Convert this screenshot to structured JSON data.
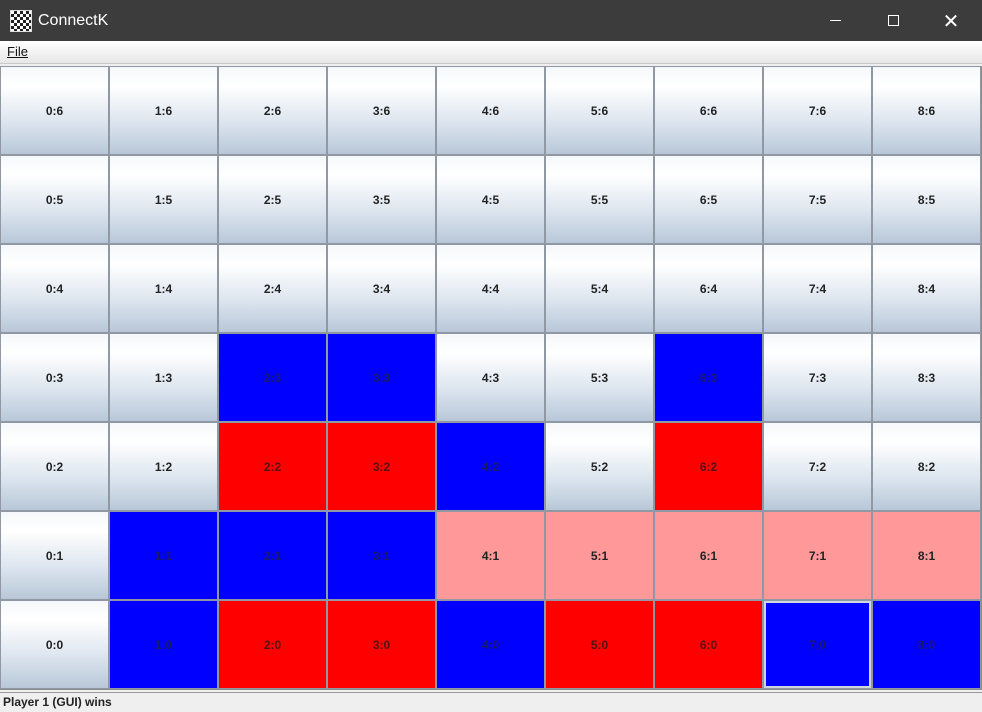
{
  "window": {
    "title": "ConnectK",
    "minimize_glyph": "",
    "maximize_glyph": "",
    "close_glyph": "✕"
  },
  "menubar": {
    "file_label": "File"
  },
  "colors": {
    "blue_piece": "#0000ff",
    "red_piece": "#ff0000",
    "highlight": "#ff9999"
  },
  "board": {
    "columns": 9,
    "rows": 7,
    "cells": [
      {
        "label": "0:6",
        "state": "empty"
      },
      {
        "label": "1:6",
        "state": "empty"
      },
      {
        "label": "2:6",
        "state": "empty"
      },
      {
        "label": "3:6",
        "state": "empty"
      },
      {
        "label": "4:6",
        "state": "empty"
      },
      {
        "label": "5:6",
        "state": "empty"
      },
      {
        "label": "6:6",
        "state": "empty"
      },
      {
        "label": "7:6",
        "state": "empty"
      },
      {
        "label": "8:6",
        "state": "empty"
      },
      {
        "label": "0:5",
        "state": "empty"
      },
      {
        "label": "1:5",
        "state": "empty"
      },
      {
        "label": "2:5",
        "state": "empty"
      },
      {
        "label": "3:5",
        "state": "empty"
      },
      {
        "label": "4:5",
        "state": "empty"
      },
      {
        "label": "5:5",
        "state": "empty"
      },
      {
        "label": "6:5",
        "state": "empty"
      },
      {
        "label": "7:5",
        "state": "empty"
      },
      {
        "label": "8:5",
        "state": "empty"
      },
      {
        "label": "0:4",
        "state": "empty"
      },
      {
        "label": "1:4",
        "state": "empty"
      },
      {
        "label": "2:4",
        "state": "empty"
      },
      {
        "label": "3:4",
        "state": "empty"
      },
      {
        "label": "4:4",
        "state": "empty"
      },
      {
        "label": "5:4",
        "state": "empty"
      },
      {
        "label": "6:4",
        "state": "empty"
      },
      {
        "label": "7:4",
        "state": "empty"
      },
      {
        "label": "8:4",
        "state": "empty"
      },
      {
        "label": "0:3",
        "state": "empty"
      },
      {
        "label": "1:3",
        "state": "empty"
      },
      {
        "label": "2:3",
        "state": "blue"
      },
      {
        "label": "3:3",
        "state": "blue"
      },
      {
        "label": "4:3",
        "state": "empty"
      },
      {
        "label": "5:3",
        "state": "empty"
      },
      {
        "label": "6:3",
        "state": "blue"
      },
      {
        "label": "7:3",
        "state": "empty"
      },
      {
        "label": "8:3",
        "state": "empty"
      },
      {
        "label": "0:2",
        "state": "empty"
      },
      {
        "label": "1:2",
        "state": "empty"
      },
      {
        "label": "2:2",
        "state": "red"
      },
      {
        "label": "3:2",
        "state": "red"
      },
      {
        "label": "4:2",
        "state": "blue"
      },
      {
        "label": "5:2",
        "state": "empty"
      },
      {
        "label": "6:2",
        "state": "red"
      },
      {
        "label": "7:2",
        "state": "empty"
      },
      {
        "label": "8:2",
        "state": "empty"
      },
      {
        "label": "0:1",
        "state": "empty"
      },
      {
        "label": "1:1",
        "state": "blue"
      },
      {
        "label": "2:1",
        "state": "blue"
      },
      {
        "label": "3:1",
        "state": "blue"
      },
      {
        "label": "4:1",
        "state": "pink"
      },
      {
        "label": "5:1",
        "state": "pink"
      },
      {
        "label": "6:1",
        "state": "pink"
      },
      {
        "label": "7:1",
        "state": "pink"
      },
      {
        "label": "8:1",
        "state": "pink"
      },
      {
        "label": "0:0",
        "state": "empty"
      },
      {
        "label": "1:0",
        "state": "blue"
      },
      {
        "label": "2:0",
        "state": "red"
      },
      {
        "label": "3:0",
        "state": "red"
      },
      {
        "label": "4:0",
        "state": "blue"
      },
      {
        "label": "5:0",
        "state": "red"
      },
      {
        "label": "6:0",
        "state": "red"
      },
      {
        "label": "7:0",
        "state": "blue",
        "selected": true
      },
      {
        "label": "8:0",
        "state": "blue"
      }
    ]
  },
  "status": {
    "text": "Player 1 (GUI) wins"
  }
}
